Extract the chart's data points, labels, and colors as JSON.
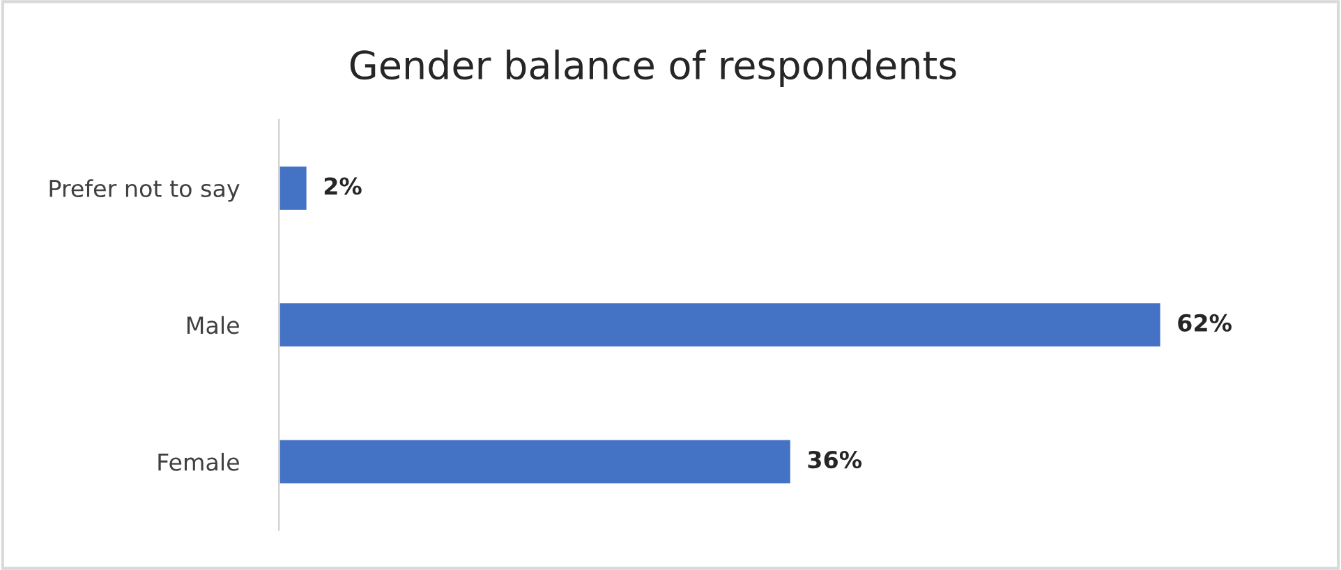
{
  "chart_data": {
    "type": "bar",
    "title": "Gender balance of respondents",
    "orientation": "horizontal",
    "categories": [
      "Prefer not to say",
      "Male",
      "Female"
    ],
    "values": [
      2,
      62,
      36
    ],
    "color": "#4472c4",
    "value_labels": [
      "2%",
      "62%",
      "36%"
    ],
    "grid": false,
    "legend": false
  }
}
